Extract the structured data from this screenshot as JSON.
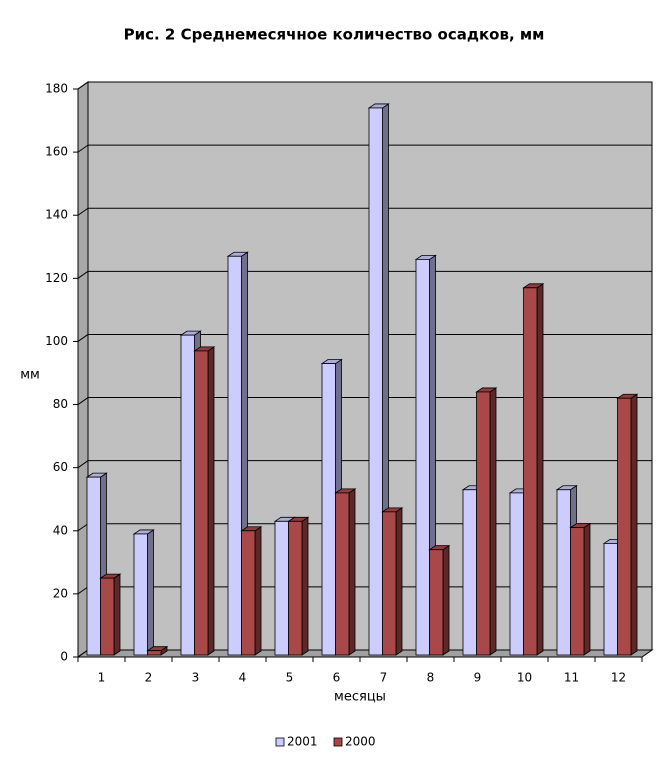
{
  "chart_data": {
    "type": "bar3d",
    "title": "Рис. 2 Среднемесячное количество осадков, мм",
    "x_label": "месяцы",
    "y_label": "мм",
    "categories": [
      "1",
      "2",
      "3",
      "4",
      "5",
      "6",
      "7",
      "8",
      "9",
      "10",
      "11",
      "12"
    ],
    "series": [
      {
        "name": "2001",
        "color": "#ccccff",
        "values": [
          57,
          39,
          102,
          127,
          43,
          93,
          174,
          126,
          53,
          52,
          53,
          36
        ]
      },
      {
        "name": "2000",
        "color": "#a84848",
        "values": [
          25,
          2,
          97,
          40,
          43,
          52,
          46,
          34,
          84,
          117,
          41,
          82
        ]
      }
    ],
    "ylim": [
      0,
      180
    ],
    "yticks": [
      0,
      20,
      40,
      60,
      80,
      100,
      120,
      140,
      160,
      180
    ],
    "grid": true,
    "legend": "bottom"
  }
}
